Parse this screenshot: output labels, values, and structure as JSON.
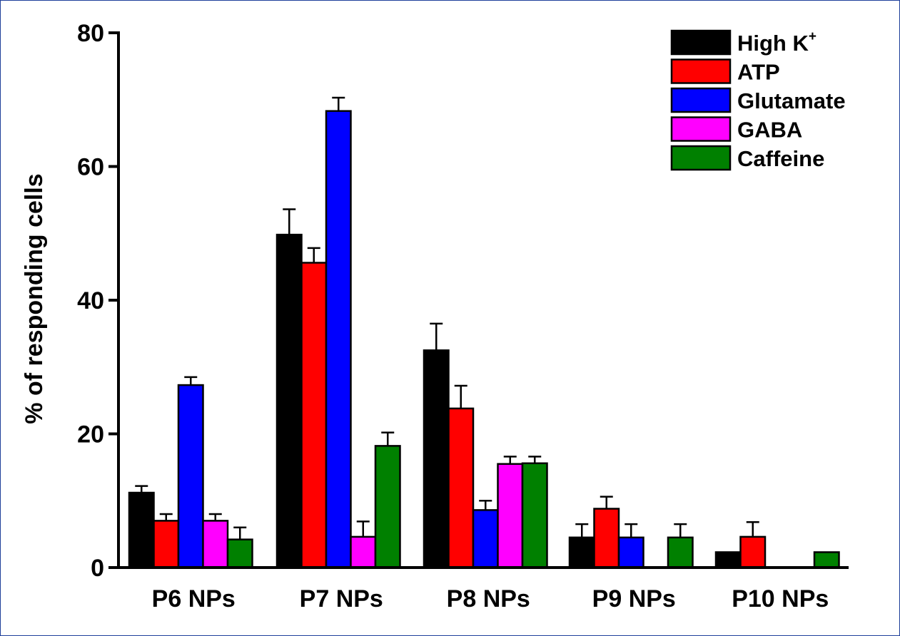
{
  "chart_data": {
    "type": "bar",
    "title": "",
    "xlabel": "",
    "ylabel": "% of responding cells",
    "ylim": [
      0,
      80
    ],
    "yticks": [
      "0",
      "20",
      "40",
      "60",
      "80"
    ],
    "grid": false,
    "legend_position": "top-right",
    "categories": [
      "P6 NPs",
      "P7 NPs",
      "P8 NPs",
      "P9 NPs",
      "P10 NPs"
    ],
    "series": [
      {
        "name": "High K",
        "name_sup": "+",
        "color": "#000000",
        "values": [
          11.2,
          49.8,
          32.5,
          4.5,
          2.3
        ],
        "errors": [
          1.0,
          3.8,
          4.0,
          2.0,
          0
        ]
      },
      {
        "name": "ATP",
        "color": "#ff0000",
        "values": [
          7.0,
          45.6,
          23.8,
          8.8,
          4.6
        ],
        "errors": [
          1.0,
          2.2,
          3.4,
          1.8,
          2.2
        ]
      },
      {
        "name": "Glutamate",
        "color": "#0000ff",
        "values": [
          27.3,
          68.3,
          8.6,
          4.5,
          0
        ],
        "errors": [
          1.2,
          2.0,
          1.4,
          2.0,
          0
        ]
      },
      {
        "name": "GABA",
        "color": "#ff00ff",
        "values": [
          7.0,
          4.6,
          15.5,
          0,
          0
        ],
        "errors": [
          1.0,
          2.3,
          1.1,
          0,
          0
        ]
      },
      {
        "name": "Caffeine",
        "color": "#008000",
        "values": [
          4.2,
          18.2,
          15.6,
          4.5,
          2.3
        ],
        "errors": [
          1.8,
          2.0,
          1.0,
          2.0,
          0
        ]
      }
    ]
  }
}
